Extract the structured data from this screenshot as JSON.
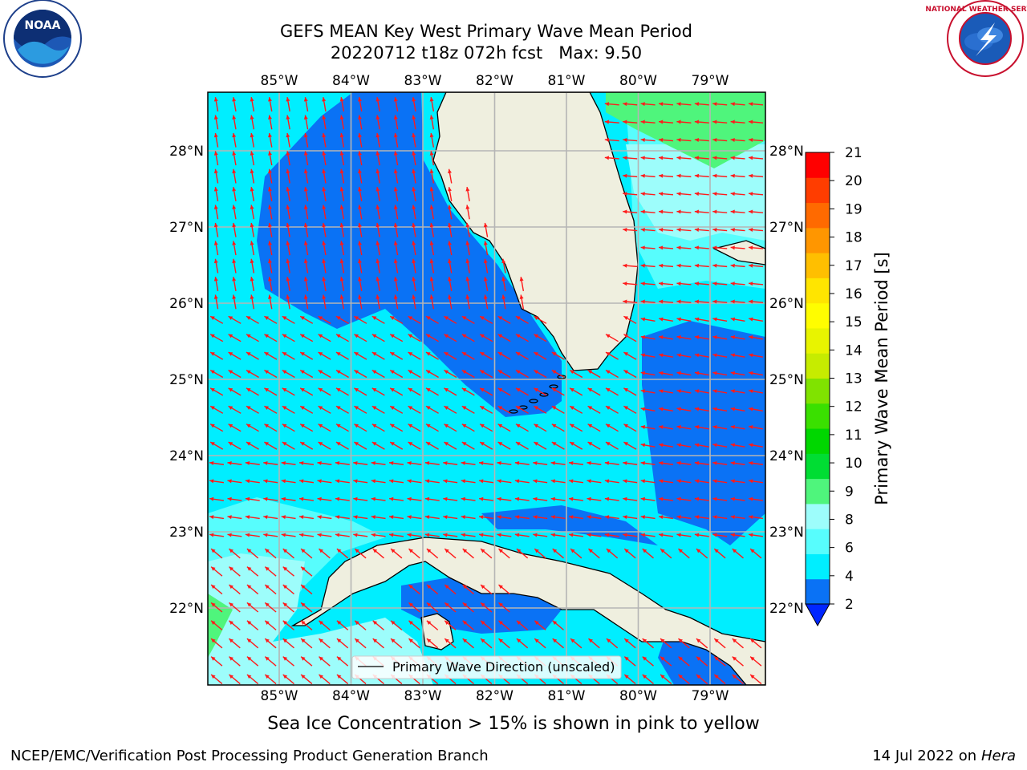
{
  "title": {
    "line1": "GEFS MEAN Key West Primary Wave Mean Period",
    "line2": "20220712 t18z 072h fcst   Max: 9.50"
  },
  "map": {
    "lon_labels": [
      "85°W",
      "84°W",
      "83°W",
      "82°W",
      "81°W",
      "80°W",
      "79°W"
    ],
    "lat_labels": [
      "28°N",
      "27°N",
      "26°N",
      "25°N",
      "24°N",
      "23°N",
      "22°N"
    ],
    "legend_label": "Primary Wave Direction (unscaled)",
    "colors": {
      "land": "#efefdf",
      "c2_4": "#0a72f5",
      "c4_6": "#00eeff",
      "c6_8": "#57fdfd",
      "c8_9": "#9dfdfb",
      "c9_10": "#4ff57c",
      "arrow": "#ff1a1a"
    }
  },
  "colorbar": {
    "label": "Primary Wave Mean Period [s]",
    "ticks": [
      "21",
      "20",
      "19",
      "18",
      "17",
      "16",
      "15",
      "14",
      "13",
      "12",
      "11",
      "10",
      "9",
      "8",
      "6",
      "4",
      "2"
    ],
    "colors": [
      "#0026ff",
      "#0a72f5",
      "#00eeff",
      "#57fdfd",
      "#9dfdfb",
      "#4ff57c",
      "#00dd33",
      "#00d700",
      "#3ae000",
      "#80e300",
      "#c6ec00",
      "#e8f400",
      "#fffd00",
      "#ffe500",
      "#ffbf00",
      "#ff9600",
      "#ff6a00",
      "#ff3d00",
      "#ff0000"
    ]
  },
  "footer": {
    "caption": "Sea Ice Concentration > 15% is shown in pink to yellow",
    "left": "NCEP/EMC/Verification Post Processing Product Generation Branch",
    "right_date": "14 Jul 2022 on ",
    "right_host": "Hera"
  },
  "logos": {
    "noaa_text": "NOAA",
    "nws_text": "NATIONAL WEATHER SERVICE"
  }
}
